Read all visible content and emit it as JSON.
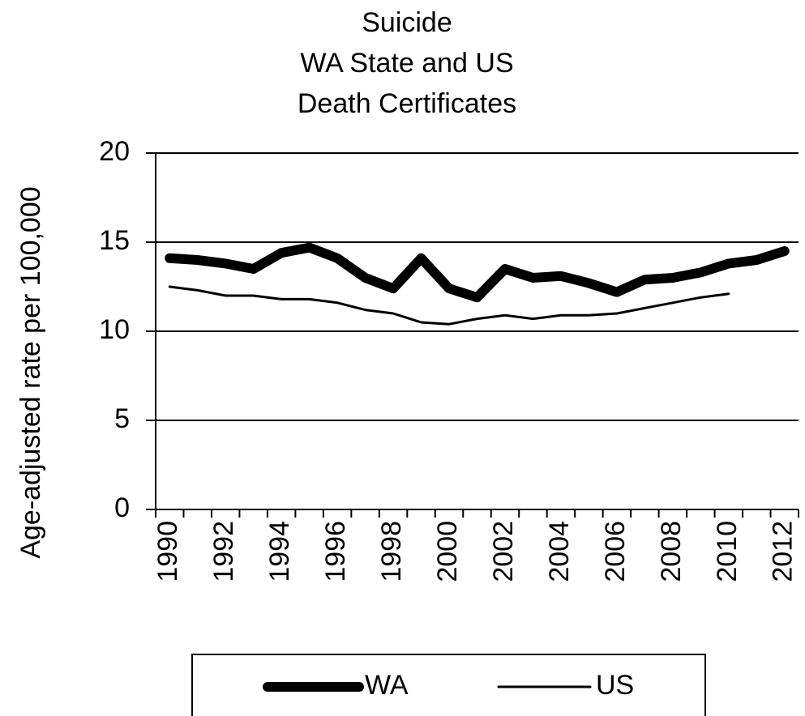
{
  "chart_data": {
    "type": "line",
    "title": [
      "Suicide",
      "WA State and US",
      "Death Certificates"
    ],
    "y_label": "Age-adjusted rate per 100,000",
    "x": [
      1990,
      1991,
      1992,
      1993,
      1994,
      1995,
      1996,
      1997,
      1998,
      1999,
      2000,
      2001,
      2002,
      2003,
      2004,
      2005,
      2006,
      2007,
      2008,
      2009,
      2010,
      2011,
      2012
    ],
    "xlim": [
      1989.5,
      2012.5
    ],
    "xticks": [
      1990,
      1992,
      1994,
      1996,
      1998,
      2000,
      2002,
      2004,
      2006,
      2008,
      2010,
      2012
    ],
    "ylim": [
      0,
      20
    ],
    "yticks": [
      0,
      5,
      10,
      15,
      20
    ],
    "grid": true,
    "legend": "bottom",
    "series": [
      {
        "name": "WA",
        "color": "#000000",
        "values": [
          14.1,
          14.0,
          13.8,
          13.5,
          14.4,
          14.7,
          14.1,
          13.0,
          12.4,
          14.1,
          12.4,
          11.9,
          13.5,
          13.0,
          13.1,
          12.7,
          12.2,
          12.9,
          13.0,
          13.3,
          13.8,
          14.0,
          14.5
        ]
      },
      {
        "name": "US",
        "color": "#000000",
        "values": [
          12.5,
          12.3,
          12.0,
          12.0,
          11.8,
          11.8,
          11.6,
          11.2,
          11.0,
          10.5,
          10.4,
          10.7,
          10.9,
          10.7,
          10.9,
          10.9,
          11.0,
          11.3,
          11.6,
          11.9,
          12.1,
          null,
          null
        ]
      }
    ]
  }
}
